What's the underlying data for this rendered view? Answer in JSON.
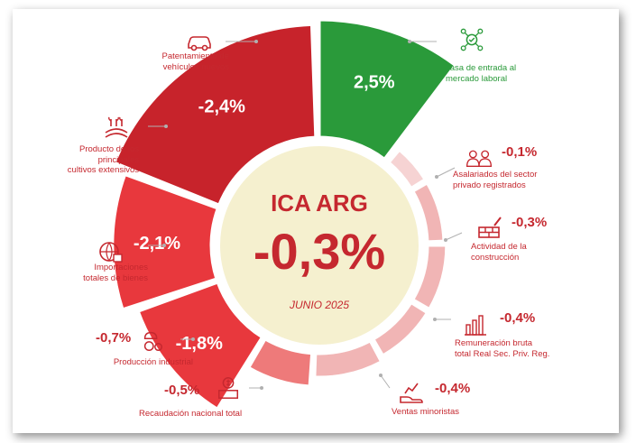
{
  "chart_data": {
    "type": "radial-bar",
    "title": "ICA ARG",
    "headline_value": "-0,3%",
    "period": "JUNIO 2025",
    "categories": [
      "Tasa de entrada al mercado laboral",
      "Asalariados del sector privado registrados",
      "Actividad de la construcción",
      "Remuneración bruta total Real Sec. Priv. Reg.",
      "Ventas minoristas",
      "Recaudación nacional total",
      "Producción industrial",
      "Importaciones totales de bienes",
      "Producto de los principales cultivos extensivos",
      "Patentamiento de vehículos nuevos"
    ],
    "values": [
      2.5,
      -0.1,
      -0.3,
      -0.4,
      -0.4,
      -0.5,
      -0.7,
      -1.8,
      -2.1,
      -2.4
    ],
    "value_labels": [
      "2,5%",
      "-0,1%",
      "-0,3%",
      "-0,4%",
      "-0,4%",
      "-0,5%",
      "-0,7%",
      "-1,8%",
      "-2,1%",
      "-2,4%"
    ],
    "colors": {
      "positive": "#2a9a3a",
      "negative_large": "#e8383d",
      "negative_dark": "#c7232b",
      "negative_mid": "#ee7a7a",
      "negative_small": "#f1b5b5",
      "negative_tiny": "#f6d3d3",
      "center_fill": "#f5f0cf",
      "center_text": "#c5282f"
    }
  },
  "labels": {
    "vehiculos": "Patentamiento de\nvehículos nuevos",
    "tasa": "Tasa de entrada al\nmercado laboral",
    "cultivos": "Producto de los\nprincipales\ncultivos extensivos",
    "asalariados": "Asalariados del sector\nprivado registrados",
    "construccion": "Actividad de la\nconstrucción",
    "importaciones": "Importaciones\ntotales de bienes",
    "remuneracion": "Remuneración bruta\ntotal Real Sec. Priv. Reg.",
    "industria": "Producción industrial",
    "ventas": "Ventas minoristas",
    "recaudacion": "Recaudación nacional total"
  },
  "icons": [
    "car-icon",
    "network-people-icon",
    "crops-icon",
    "people-icon",
    "construction-icon",
    "globe-box-icon",
    "bar-chart-money-icon",
    "factory-gear-icon",
    "shopping-hand-icon",
    "cash-register-icon"
  ]
}
